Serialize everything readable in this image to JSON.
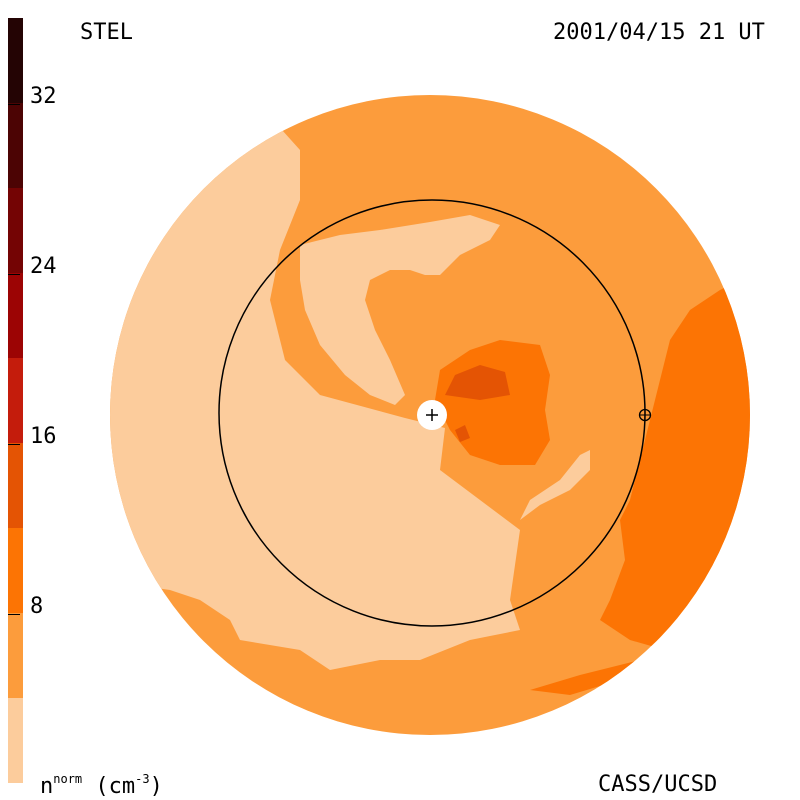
{
  "header": {
    "model_label": "STEL",
    "timestamp": "2001/04/15 21 UT"
  },
  "footer": {
    "quantity_base": "n",
    "quantity_sup": "norm",
    "unit_base": "(cm",
    "unit_sup": "-3",
    "unit_close": ")",
    "credit": "CASS/UCSD"
  },
  "chart_data": {
    "type": "heatmap",
    "colorbar": {
      "range": [
        0,
        36
      ],
      "ticks": [
        {
          "value": 8,
          "label": "8"
        },
        {
          "value": 16,
          "label": "16"
        },
        {
          "value": 24,
          "label": "24"
        },
        {
          "value": 32,
          "label": "32"
        }
      ],
      "bands": [
        {
          "from": 0,
          "to": 4,
          "color": "#fccc9c"
        },
        {
          "from": 4,
          "to": 8,
          "color": "#fc9c3c"
        },
        {
          "from": 8,
          "to": 12,
          "color": "#fc7404"
        },
        {
          "from": 12,
          "to": 16,
          "color": "#e45404"
        },
        {
          "from": 16,
          "to": 20,
          "color": "#c41c0c"
        },
        {
          "from": 20,
          "to": 24,
          "color": "#9c0404"
        },
        {
          "from": 24,
          "to": 28,
          "color": "#740404"
        },
        {
          "from": 28,
          "to": 32,
          "color": "#4c0404"
        },
        {
          "from": 32,
          "to": 36,
          "color": "#240404"
        }
      ]
    },
    "markers": {
      "sun": "+",
      "earth": "⊕"
    }
  }
}
